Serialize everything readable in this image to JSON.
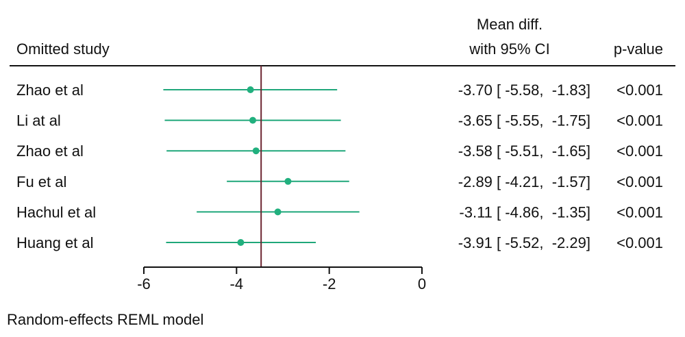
{
  "chart_data": {
    "type": "forest",
    "header": {
      "study": "Omitted study",
      "estimate_line1": "Mean diff.",
      "estimate_line2": "with 95% CI",
      "pvalue": "p-value"
    },
    "studies": [
      {
        "label": "Zhao et al",
        "mean": -3.7,
        "lower": -5.58,
        "upper": -1.83,
        "ci_text": "-3.70 [ -5.58,  -1.83]",
        "p": "<0.001"
      },
      {
        "label": "Li at al",
        "mean": -3.65,
        "lower": -5.55,
        "upper": -1.75,
        "ci_text": "-3.65 [ -5.55,  -1.75]",
        "p": "<0.001"
      },
      {
        "label": "Zhao et al",
        "mean": -3.58,
        "lower": -5.51,
        "upper": -1.65,
        "ci_text": "-3.58 [ -5.51,  -1.65]",
        "p": "<0.001"
      },
      {
        "label": "Fu et al",
        "mean": -2.89,
        "lower": -4.21,
        "upper": -1.57,
        "ci_text": "-2.89 [ -4.21,  -1.57]",
        "p": "<0.001"
      },
      {
        "label": "Hachul et al",
        "mean": -3.11,
        "lower": -4.86,
        "upper": -1.35,
        "ci_text": "-3.11 [ -4.86,  -1.35]",
        "p": "<0.001"
      },
      {
        "label": "Huang et al",
        "mean": -3.91,
        "lower": -5.52,
        "upper": -2.29,
        "ci_text": "-3.91 [ -5.52,  -2.29]",
        "p": "<0.001"
      }
    ],
    "overall_line": -3.47,
    "x_ticks": [
      -6,
      -4,
      -2,
      0
    ],
    "x_tick_labels": [
      "-6",
      "-4",
      "-2",
      "0"
    ],
    "xlim": [
      -6,
      0
    ],
    "footnote": "Random-effects REML model",
    "colors": {
      "ci": "#1fa77a",
      "point": "#21b07e",
      "reference": "#6b2430",
      "text": "#111111"
    }
  }
}
